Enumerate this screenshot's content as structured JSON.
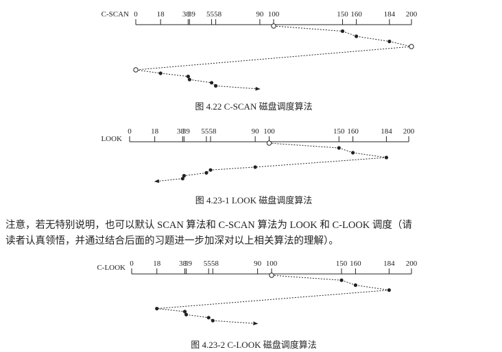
{
  "ticks": [
    0,
    18,
    38,
    39,
    55,
    58,
    90,
    100,
    150,
    160,
    184,
    200
  ],
  "diagrams": [
    {
      "id": "cscan",
      "label": "C-SCAN",
      "caption": "图 4.22    C-SCAN 磁盘调度算法",
      "visits": [
        {
          "track": 100,
          "start": true
        },
        {
          "track": 150
        },
        {
          "track": 160
        },
        {
          "track": 184
        },
        {
          "track": 200,
          "hollow": true
        },
        {
          "track": 0,
          "hollow": true
        },
        {
          "track": 18
        },
        {
          "track": 38
        },
        {
          "track": 39
        },
        {
          "track": 55
        },
        {
          "track": 58
        },
        {
          "track": 90,
          "end": true
        }
      ]
    },
    {
      "id": "look",
      "label": "LOOK",
      "caption": "图 4.23-1    LOOK 磁盘调度算法",
      "visits": [
        {
          "track": 100,
          "start": true
        },
        {
          "track": 150
        },
        {
          "track": 160
        },
        {
          "track": 184
        },
        {
          "track": 90
        },
        {
          "track": 58
        },
        {
          "track": 55
        },
        {
          "track": 39
        },
        {
          "track": 38
        },
        {
          "track": 18,
          "end": true
        }
      ]
    },
    {
      "id": "clook",
      "label": "C-LOOK",
      "caption": "图 4.23-2    C-LOOK 磁盘调度算法",
      "visits": [
        {
          "track": 100,
          "start": true
        },
        {
          "track": 150
        },
        {
          "track": 160
        },
        {
          "track": 184
        },
        {
          "track": 18
        },
        {
          "track": 38
        },
        {
          "track": 39
        },
        {
          "track": 55
        },
        {
          "track": 58
        },
        {
          "track": 90,
          "end": true
        }
      ]
    }
  ],
  "note": {
    "line1": "注意，若无特别说明，也可以默认 SCAN 算法和 C-SCAN 算法为 LOOK 和 C-LOOK 调度（请",
    "line2": "读者认真领悟，并通过结合后面的习题进一步加深对以上相关算法的理解）。"
  }
}
